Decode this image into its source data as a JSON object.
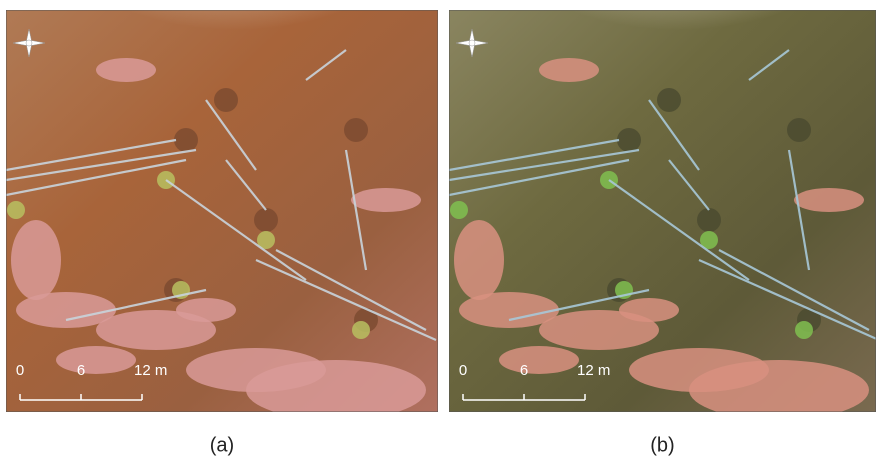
{
  "panels": [
    {
      "label": "(a)",
      "scale_labels": [
        "0",
        "6",
        "12 m"
      ]
    },
    {
      "label": "(b)",
      "scale_labels": [
        "0",
        "6",
        "12 m"
      ]
    }
  ]
}
